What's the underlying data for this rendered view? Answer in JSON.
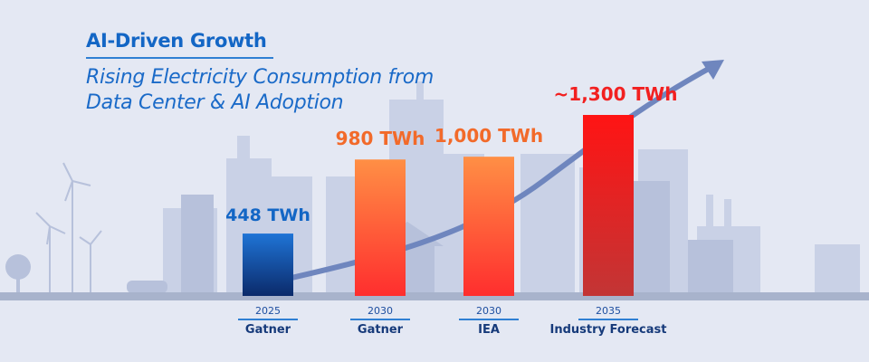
{
  "title": "AI-Driven Growth",
  "subtitle_line1": "Rising Electricity Consumption from",
  "subtitle_line2": "Data Center & AI Adoption",
  "chart_data": {
    "type": "bar",
    "title": "AI-Driven Growth",
    "subtitle": "Rising Electricity Consumption from Data Center & AI Adoption",
    "unit": "TWh",
    "categories": [
      {
        "year": "2025",
        "source": "Gatner"
      },
      {
        "year": "2030",
        "source": "Gatner"
      },
      {
        "year": "2030",
        "source": "IEA"
      },
      {
        "year": "2035",
        "source": "Industry Forecast"
      }
    ],
    "values": [
      448,
      980,
      1000,
      1300
    ],
    "data_labels": [
      "448 TWh",
      "980 TWh",
      "1,000 TWh",
      "~1,300 TWh"
    ],
    "label_colors": [
      "#1366c5",
      "#f26a2a",
      "#f26a2a",
      "#f22020"
    ],
    "bar_colors": [
      [
        "#1f74d6",
        "#0b2a6a"
      ],
      [
        "#ff8f45",
        "#ff2e2e"
      ],
      [
        "#ff8f45",
        "#ff2e2e"
      ],
      [
        "#ff1414",
        "#c23535"
      ]
    ],
    "ylim": [
      0,
      1300
    ],
    "grid": false,
    "legend": "none"
  }
}
